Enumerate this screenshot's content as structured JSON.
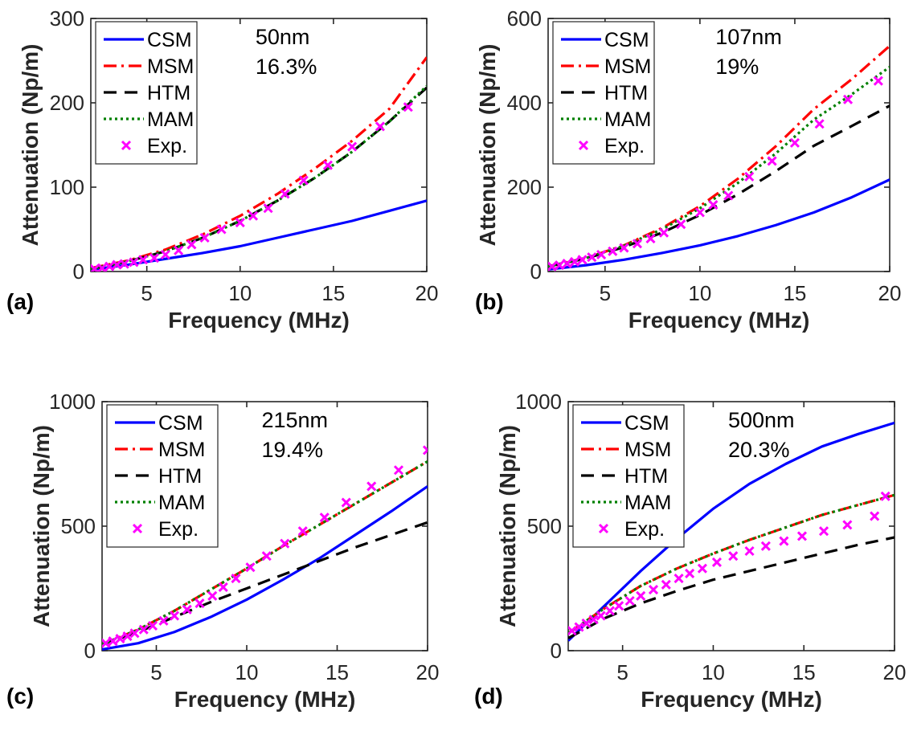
{
  "figure": {
    "panels_count": 4
  },
  "chart_data": [
    {
      "type": "line",
      "panel_label": "(a)",
      "xlabel": "Frequency (MHz)",
      "ylabel": "Attenuation (Np/m)",
      "xlim": [
        2,
        20
      ],
      "ylim": [
        0,
        300
      ],
      "xticks": [
        5,
        10,
        15,
        20
      ],
      "yticks": [
        0,
        100,
        200,
        300
      ],
      "grid": false,
      "legend_position": "top-left",
      "annotations": [
        "50nm",
        "16.3%"
      ],
      "series": [
        {
          "name": "CSM",
          "style": "solid",
          "color": "#0000ff",
          "x": [
            2,
            4,
            6,
            8,
            10,
            12,
            14,
            16,
            18,
            20
          ],
          "y": [
            2,
            8,
            15,
            22,
            30,
            40,
            50,
            60,
            72,
            84
          ]
        },
        {
          "name": "MSM",
          "style": "dashdot",
          "color": "#ff0000",
          "x": [
            2,
            4,
            6,
            8,
            10,
            12,
            14,
            16,
            18,
            20
          ],
          "y": [
            4,
            13,
            26,
            44,
            66,
            92,
            122,
            155,
            193,
            254
          ]
        },
        {
          "name": "HTM",
          "style": "dashed",
          "color": "#000000",
          "x": [
            2,
            4,
            6,
            8,
            10,
            12,
            14,
            16,
            18,
            20
          ],
          "y": [
            3,
            12,
            24,
            40,
            60,
            84,
            111,
            142,
            178,
            218
          ]
        },
        {
          "name": "MAM",
          "style": "dotted",
          "color": "#008000",
          "x": [
            2,
            4,
            6,
            8,
            10,
            12,
            14,
            16,
            18,
            20
          ],
          "y": [
            3,
            12,
            24,
            40,
            60,
            84,
            111,
            142,
            178,
            220
          ]
        },
        {
          "name": "Exp.",
          "style": "marker",
          "color": "#ff00ff",
          "x": [
            2.2,
            2.6,
            3,
            3.4,
            3.8,
            4.3,
            4.8,
            5.4,
            6,
            6.7,
            7.4,
            8.1,
            9,
            10,
            10.7,
            11.5,
            12.4,
            13.4,
            14.7,
            16,
            17.5,
            19
          ],
          "y": [
            3,
            4,
            6,
            8,
            9,
            11,
            14,
            16,
            20,
            25,
            32,
            40,
            50,
            58,
            66,
            75,
            92,
            108,
            126,
            148,
            172,
            195
          ]
        }
      ]
    },
    {
      "type": "line",
      "panel_label": "(b)",
      "xlabel": "Frequency (MHz)",
      "ylabel": "Attenuation (Np/m)",
      "xlim": [
        2,
        20
      ],
      "ylim": [
        0,
        600
      ],
      "xticks": [
        5,
        10,
        15,
        20
      ],
      "yticks": [
        0,
        200,
        400,
        600
      ],
      "grid": false,
      "legend_position": "top-left",
      "annotations": [
        "107nm",
        "19%"
      ],
      "series": [
        {
          "name": "CSM",
          "style": "solid",
          "color": "#0000ff",
          "x": [
            2,
            4,
            6,
            8,
            10,
            12,
            14,
            16,
            18,
            20
          ],
          "y": [
            5,
            15,
            28,
            44,
            62,
            84,
            110,
            140,
            176,
            218
          ]
        },
        {
          "name": "MSM",
          "style": "dashdot",
          "color": "#ff0000",
          "x": [
            2,
            4,
            6,
            8,
            10,
            12,
            14,
            16,
            18,
            20
          ],
          "y": [
            12,
            32,
            62,
            103,
            155,
            220,
            297,
            385,
            456,
            535
          ]
        },
        {
          "name": "HTM",
          "style": "dashed",
          "color": "#000000",
          "x": [
            2,
            4,
            6,
            8,
            10,
            12,
            14,
            16,
            18,
            20
          ],
          "y": [
            12,
            31,
            58,
            92,
            134,
            183,
            238,
            298,
            345,
            393
          ]
        },
        {
          "name": "MAM",
          "style": "dotted",
          "color": "#008000",
          "x": [
            2,
            4,
            6,
            8,
            10,
            12,
            14,
            16,
            18,
            20
          ],
          "y": [
            12,
            32,
            61,
            100,
            150,
            210,
            280,
            360,
            420,
            485
          ]
        },
        {
          "name": "Exp.",
          "style": "marker",
          "color": "#ff00ff",
          "x": [
            2.2,
            2.6,
            3,
            3.4,
            3.8,
            4.3,
            4.8,
            5.4,
            6,
            6.7,
            7.4,
            8.1,
            9,
            10,
            10.7,
            11.5,
            12.6,
            13.8,
            15,
            16.3,
            17.8,
            19.4
          ],
          "y": [
            12,
            15,
            19,
            23,
            28,
            34,
            40,
            48,
            56,
            66,
            78,
            92,
            112,
            140,
            158,
            180,
            225,
            262,
            305,
            350,
            408,
            452
          ]
        }
      ]
    },
    {
      "type": "line",
      "panel_label": "(c)",
      "xlabel": "Frequency (MHz)",
      "ylabel": "Attenuation (Np/m)",
      "xlim": [
        2,
        20
      ],
      "ylim": [
        0,
        1000
      ],
      "xticks": [
        5,
        10,
        15,
        20
      ],
      "yticks": [
        0,
        500,
        1000
      ],
      "grid": false,
      "legend_position": "top-left",
      "annotations": [
        "215nm",
        "19.4%"
      ],
      "series": [
        {
          "name": "CSM",
          "style": "solid",
          "color": "#0000ff",
          "x": [
            2,
            4,
            6,
            8,
            10,
            12,
            14,
            16,
            18,
            20
          ],
          "y": [
            5,
            30,
            75,
            135,
            205,
            285,
            370,
            465,
            560,
            660
          ]
        },
        {
          "name": "MSM",
          "style": "dashdot",
          "color": "#ff0000",
          "x": [
            2,
            4,
            6,
            8,
            10,
            12,
            14,
            16,
            18,
            20
          ],
          "y": [
            25,
            85,
            160,
            245,
            330,
            420,
            505,
            590,
            675,
            760
          ]
        },
        {
          "name": "HTM",
          "style": "dashed",
          "color": "#000000",
          "x": [
            2,
            4,
            6,
            8,
            10,
            12,
            14,
            16,
            18,
            20
          ],
          "y": [
            25,
            75,
            135,
            195,
            250,
            305,
            360,
            415,
            465,
            515
          ]
        },
        {
          "name": "MAM",
          "style": "dotted",
          "color": "#008000",
          "x": [
            2,
            4,
            6,
            8,
            10,
            12,
            14,
            16,
            18,
            20
          ],
          "y": [
            25,
            85,
            160,
            245,
            330,
            420,
            505,
            590,
            675,
            760
          ]
        },
        {
          "name": "Exp.",
          "style": "marker",
          "color": "#ff00ff",
          "x": [
            2.2,
            2.6,
            3,
            3.4,
            3.8,
            4.3,
            4.8,
            5.4,
            6,
            6.7,
            7.4,
            8.1,
            8.7,
            9.4,
            10.2,
            11.1,
            12.1,
            13.1,
            14.3,
            15.5,
            16.9,
            18.4,
            20
          ],
          "y": [
            30,
            38,
            48,
            58,
            70,
            85,
            100,
            120,
            140,
            165,
            190,
            220,
            255,
            290,
            335,
            380,
            430,
            480,
            535,
            595,
            660,
            725,
            805
          ]
        }
      ]
    },
    {
      "type": "line",
      "panel_label": "(d)",
      "xlabel": "Frequency (MHz)",
      "ylabel": "Attenuation (Np/m)",
      "xlim": [
        2,
        20
      ],
      "ylim": [
        0,
        1000
      ],
      "xticks": [
        5,
        10,
        15,
        20
      ],
      "yticks": [
        0,
        500,
        1000
      ],
      "grid": false,
      "legend_position": "top-left",
      "annotations": [
        "500nm",
        "20.3%"
      ],
      "series": [
        {
          "name": "CSM",
          "style": "solid",
          "color": "#0000ff",
          "x": [
            2,
            4,
            6,
            8,
            10,
            12,
            14,
            16,
            18,
            20
          ],
          "y": [
            40,
            180,
            320,
            450,
            570,
            670,
            750,
            820,
            870,
            915
          ]
        },
        {
          "name": "MSM",
          "style": "dashdot",
          "color": "#ff0000",
          "x": [
            2,
            4,
            6,
            8,
            10,
            12,
            14,
            16,
            18,
            20
          ],
          "y": [
            70,
            170,
            260,
            330,
            390,
            445,
            495,
            545,
            585,
            625
          ]
        },
        {
          "name": "HTM",
          "style": "dashed",
          "color": "#000000",
          "x": [
            2,
            4,
            6,
            8,
            10,
            12,
            14,
            16,
            18,
            20
          ],
          "y": [
            50,
            130,
            190,
            240,
            285,
            320,
            355,
            390,
            425,
            455
          ]
        },
        {
          "name": "MAM",
          "style": "dotted",
          "color": "#008000",
          "x": [
            2,
            4,
            6,
            8,
            10,
            12,
            14,
            16,
            18,
            20
          ],
          "y": [
            70,
            170,
            260,
            330,
            390,
            445,
            495,
            545,
            585,
            625
          ]
        },
        {
          "name": "Exp.",
          "style": "marker",
          "color": "#ff00ff",
          "x": [
            2.2,
            2.6,
            3,
            3.4,
            3.8,
            4.3,
            4.8,
            5.4,
            6,
            6.7,
            7.4,
            8.1,
            8.7,
            9.4,
            10.2,
            11.1,
            12,
            12.9,
            13.9,
            14.9,
            16.1,
            17.4,
            18.9,
            19.5
          ],
          "y": [
            80,
            95,
            110,
            125,
            140,
            160,
            180,
            200,
            220,
            245,
            265,
            290,
            310,
            330,
            355,
            380,
            400,
            420,
            440,
            460,
            480,
            505,
            540,
            620
          ]
        }
      ]
    }
  ]
}
